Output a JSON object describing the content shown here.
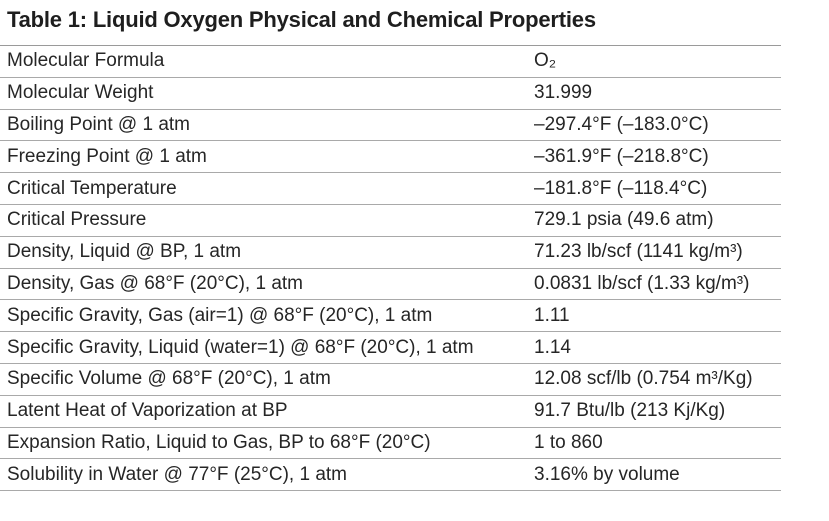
{
  "title": "Table 1: Liquid Oxygen Physical and Chemical Properties",
  "rows": [
    {
      "property": "Molecular Formula",
      "value": "O₂"
    },
    {
      "property": "Molecular Weight",
      "value": "31.999"
    },
    {
      "property": "Boiling Point @ 1 atm",
      "value": "–297.4°F (–183.0°C)"
    },
    {
      "property": "Freezing Point @ 1 atm",
      "value": "–361.9°F (–218.8°C)"
    },
    {
      "property": "Critical Temperature",
      "value": "–181.8°F (–118.4°C)"
    },
    {
      "property": "Critical Pressure",
      "value": "729.1 psia (49.6 atm)"
    },
    {
      "property": "Density, Liquid @ BP, 1 atm",
      "value": "71.23 lb/scf (1141 kg/m³)"
    },
    {
      "property": "Density, Gas @ 68°F (20°C), 1 atm",
      "value": "0.0831 lb/scf (1.33 kg/m³)"
    },
    {
      "property": "Specific Gravity, Gas (air=1) @ 68°F (20°C), 1 atm",
      "value": "1.11"
    },
    {
      "property": "Specific Gravity, Liquid (water=1) @ 68°F (20°C), 1 atm",
      "value": "1.14"
    },
    {
      "property": "Specific Volume @ 68°F (20°C), 1 atm",
      "value": "12.08 scf/lb (0.754 m³/Kg)"
    },
    {
      "property": "Latent Heat of Vaporization at BP",
      "value": "91.7 Btu/lb (213 Kj/Kg)"
    },
    {
      "property": "Expansion Ratio, Liquid to Gas, BP to 68°F (20°C)",
      "value": "1 to 860"
    },
    {
      "property": "Solubility in Water @ 77°F (25°C), 1 atm",
      "value": "3.16% by volume"
    }
  ]
}
